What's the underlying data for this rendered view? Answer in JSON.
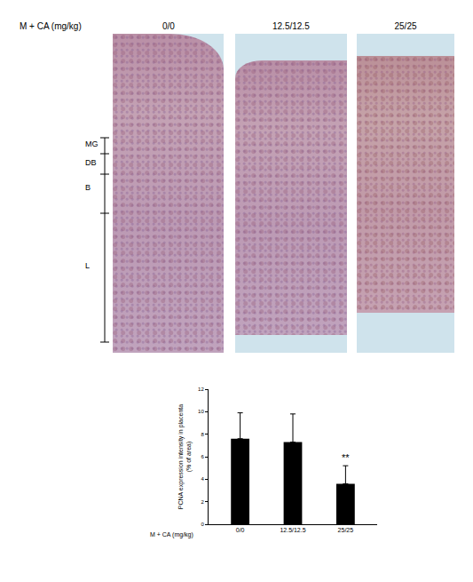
{
  "figure": {
    "group_label": "M + CA (mg/kg)",
    "panel_labels": [
      "0/0",
      "12.5/12.5",
      "25/25"
    ],
    "layers": [
      "MG",
      "DB",
      "B",
      "L"
    ]
  },
  "chart_data": {
    "type": "bar",
    "x_label": "M + CA (mg/kg)",
    "y_label": [
      "PCNA expression intensity in placenta",
      "(% of area)"
    ],
    "categories": [
      "0/0",
      "12.5/12.5",
      "25/25"
    ],
    "values": [
      7.6,
      7.3,
      3.6
    ],
    "errors": [
      2.3,
      2.5,
      1.6
    ],
    "color": "#000000",
    "ylim": [
      0,
      12
    ],
    "yticks": [
      0,
      2,
      4,
      6,
      8,
      10,
      12
    ],
    "grid": false,
    "annotations": [
      {
        "category": "25/25",
        "text": "**"
      }
    ]
  }
}
